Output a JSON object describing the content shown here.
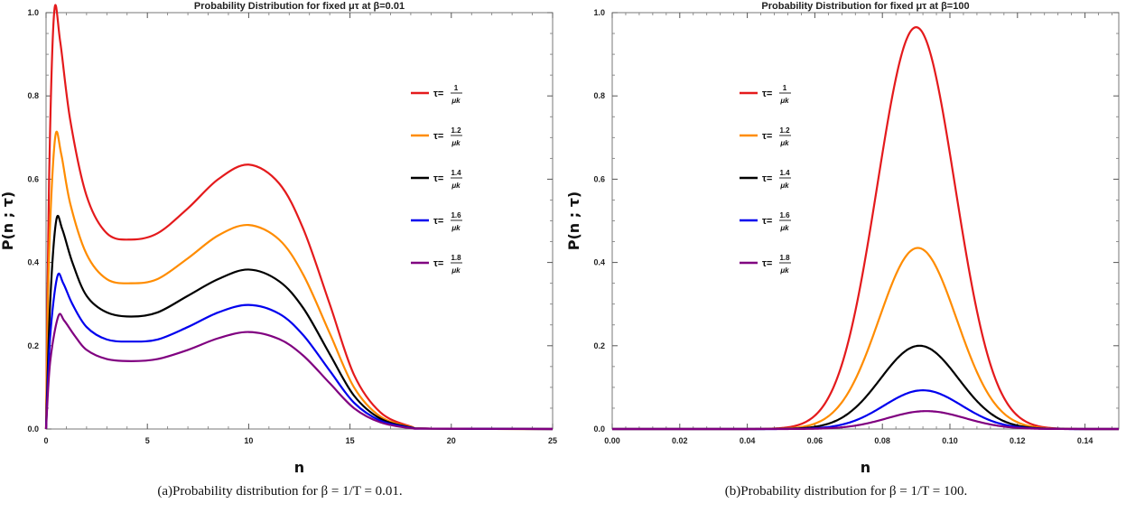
{
  "chart_data": [
    {
      "type": "line",
      "title": "Probability Distribution for fixed μτ at β=0.01",
      "xlabel": "n",
      "ylabel": "P(n ; τ)",
      "xlim": [
        0,
        25
      ],
      "ylim": [
        0,
        1.0
      ],
      "xticks": [
        "0",
        "5",
        "10",
        "15",
        "20",
        "25"
      ],
      "yticks": [
        "0.0",
        "0.2",
        "0.4",
        "0.6",
        "0.8",
        "1.0"
      ],
      "legend_position": "top-right",
      "caption": "(a)Probability distribution for β = 1/T = 0.01.",
      "series": [
        {
          "name": "τ=1/μk",
          "num": "1",
          "den": "μk",
          "color": "#e41a1c",
          "x": [
            0,
            0.15,
            0.4,
            0.7,
            1.2,
            2,
            3,
            4.2,
            5.5,
            7,
            8.5,
            10,
            11.5,
            12.7,
            14,
            15.2,
            16.5,
            18,
            19,
            25
          ],
          "y": [
            0,
            0.6,
            1.0,
            0.93,
            0.74,
            0.56,
            0.47,
            0.455,
            0.47,
            0.53,
            0.6,
            0.635,
            0.59,
            0.48,
            0.3,
            0.13,
            0.04,
            0.006,
            0.001,
            0
          ]
        },
        {
          "name": "τ=1.2/μk",
          "num": "1.2",
          "den": "μk",
          "color": "#ff8c00",
          "x": [
            0,
            0.15,
            0.45,
            0.75,
            1.2,
            2,
            3,
            4.2,
            5.5,
            7,
            8.5,
            10,
            11.5,
            12.7,
            14,
            15.2,
            16.5,
            18,
            19,
            25
          ],
          "y": [
            0,
            0.42,
            0.7,
            0.66,
            0.54,
            0.42,
            0.36,
            0.35,
            0.36,
            0.41,
            0.465,
            0.49,
            0.455,
            0.37,
            0.23,
            0.1,
            0.03,
            0.005,
            0.001,
            0
          ]
        },
        {
          "name": "τ=1.4/μk",
          "num": "1.4",
          "den": "μk",
          "color": "#000000",
          "x": [
            0,
            0.2,
            0.5,
            0.8,
            1.3,
            2,
            3,
            4.2,
            5.5,
            7,
            8.5,
            10,
            11.5,
            12.7,
            14,
            15.2,
            16.5,
            18,
            19,
            25
          ],
          "y": [
            0,
            0.3,
            0.5,
            0.48,
            0.4,
            0.32,
            0.28,
            0.27,
            0.28,
            0.32,
            0.36,
            0.383,
            0.355,
            0.29,
            0.18,
            0.08,
            0.025,
            0.004,
            0.001,
            0
          ]
        },
        {
          "name": "τ=1.6/μk",
          "num": "1.6",
          "den": "μk",
          "color": "#0000ee",
          "x": [
            0,
            0.2,
            0.55,
            0.85,
            1.3,
            2,
            3,
            4.2,
            5.5,
            7,
            8.5,
            10,
            11.5,
            12.7,
            14,
            15.2,
            16.5,
            18,
            19,
            25
          ],
          "y": [
            0,
            0.22,
            0.365,
            0.35,
            0.3,
            0.245,
            0.215,
            0.21,
            0.215,
            0.245,
            0.28,
            0.298,
            0.277,
            0.225,
            0.14,
            0.063,
            0.02,
            0.003,
            0.001,
            0
          ]
        },
        {
          "name": "τ=1.8/μk",
          "num": "1.8",
          "den": "μk",
          "color": "#800080",
          "x": [
            0,
            0.2,
            0.6,
            0.9,
            1.4,
            2,
            3,
            4.2,
            5.5,
            7,
            8.5,
            10,
            11.5,
            12.7,
            14,
            15.2,
            16.5,
            18,
            19,
            25
          ],
          "y": [
            0,
            0.16,
            0.27,
            0.26,
            0.225,
            0.19,
            0.168,
            0.163,
            0.168,
            0.19,
            0.218,
            0.233,
            0.216,
            0.176,
            0.11,
            0.05,
            0.016,
            0.002,
            0.001,
            0
          ]
        }
      ]
    },
    {
      "type": "line",
      "title": "Probability Distribution for fixed μτ at β=100",
      "xlabel": "n",
      "ylabel": "P(n ; τ)",
      "xlim": [
        0,
        0.15
      ],
      "ylim": [
        0,
        1.0
      ],
      "xticks": [
        "0.00",
        "0.02",
        "0.04",
        "0.06",
        "0.08",
        "0.10",
        "0.12",
        "0.14"
      ],
      "yticks": [
        "0.0",
        "0.2",
        "0.4",
        "0.6",
        "0.8",
        "1.0"
      ],
      "legend_position": "top-left",
      "caption": "(b)Probability distribution for β = 1/T = 100.",
      "series": [
        {
          "name": "τ=1/μk",
          "num": "1",
          "den": "μk",
          "color": "#e41a1c",
          "peak_x": 0.09,
          "peak_y": 0.965,
          "sigma": 0.0115
        },
        {
          "name": "τ=1.2/μk",
          "num": "1.2",
          "den": "μk",
          "color": "#ff8c00",
          "peak_x": 0.0905,
          "peak_y": 0.435,
          "sigma": 0.0115
        },
        {
          "name": "τ=1.4/μk",
          "num": "1.4",
          "den": "μk",
          "color": "#000000",
          "peak_x": 0.091,
          "peak_y": 0.2,
          "sigma": 0.0115
        },
        {
          "name": "τ=1.6/μk",
          "num": "1.6",
          "den": "μk",
          "color": "#0000ee",
          "peak_x": 0.092,
          "peak_y": 0.093,
          "sigma": 0.0115
        },
        {
          "name": "τ=1.8/μk",
          "num": "1.8",
          "den": "μk",
          "color": "#800080",
          "peak_x": 0.093,
          "peak_y": 0.043,
          "sigma": 0.0115
        }
      ]
    }
  ]
}
